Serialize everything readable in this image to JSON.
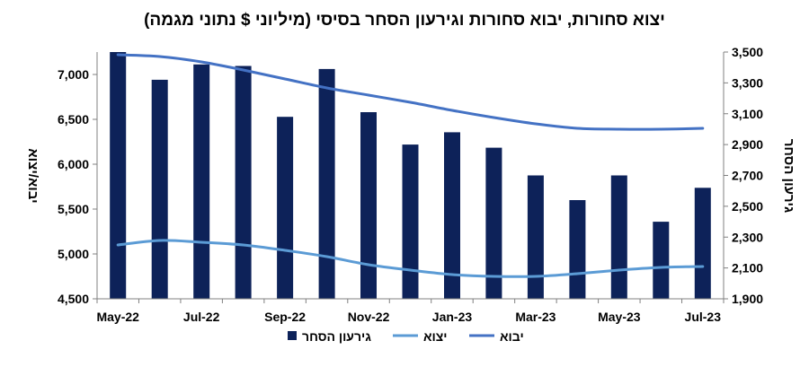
{
  "chart_data": {
    "type": "bar",
    "title": "יצוא סחורות, יבוא סחורות וגירעון הסחר בסיסי (מיליוני $ נתוני מגמה)",
    "ylabel_left": "יבוא/יצוא",
    "ylabel_right": "גירעון הסחר",
    "xlabel": "",
    "x": [
      "May-22",
      "Jun-22",
      "Jul-22",
      "Aug-22",
      "Sep-22",
      "Oct-22",
      "Nov-22",
      "Dec-22",
      "Jan-23",
      "Feb-23",
      "Mar-23",
      "Apr-23",
      "May-23",
      "Jun-23",
      "Jul-23"
    ],
    "x_tick_labels": [
      "May-22",
      "Jul-22",
      "Sep-22",
      "Nov-22",
      "Jan-23",
      "Mar-23",
      "May-23",
      "Jul-23"
    ],
    "left_axis": {
      "min": 4500,
      "max": 7250,
      "ticks": [
        4500,
        5000,
        5500,
        6000,
        6500,
        7000
      ],
      "tick_labels": [
        "4,500",
        "5,000",
        "5,500",
        "6,000",
        "6,500",
        "7,000"
      ]
    },
    "right_axis": {
      "min": 1900,
      "max": 3500,
      "ticks": [
        1900,
        2100,
        2300,
        2500,
        2700,
        2900,
        3100,
        3300,
        3500
      ],
      "tick_labels": [
        "1,900",
        "2,100",
        "2,300",
        "2,500",
        "2,700",
        "2,900",
        "3,100",
        "3,300",
        "3,500"
      ]
    },
    "grid": false,
    "legend_position": "bottom",
    "series": [
      {
        "name": "גירעון הסחר",
        "kind": "bar",
        "axis": "right",
        "color": "#0d2259",
        "values": [
          3500,
          3320,
          3420,
          3410,
          3080,
          3390,
          3110,
          2900,
          2980,
          2880,
          2700,
          2540,
          2700,
          2400,
          2620
        ]
      },
      {
        "name": "יצוא",
        "kind": "line",
        "axis": "left",
        "color": "#5b9bd5",
        "values": [
          5100,
          5150,
          5130,
          5100,
          5040,
          4970,
          4880,
          4820,
          4770,
          4750,
          4750,
          4780,
          4820,
          4850,
          4860
        ]
      },
      {
        "name": "יבוא",
        "kind": "line",
        "axis": "left",
        "color": "#4472c4",
        "values": [
          7220,
          7200,
          7140,
          7050,
          6950,
          6850,
          6770,
          6690,
          6600,
          6520,
          6450,
          6400,
          6390,
          6390,
          6400
        ]
      }
    ]
  }
}
